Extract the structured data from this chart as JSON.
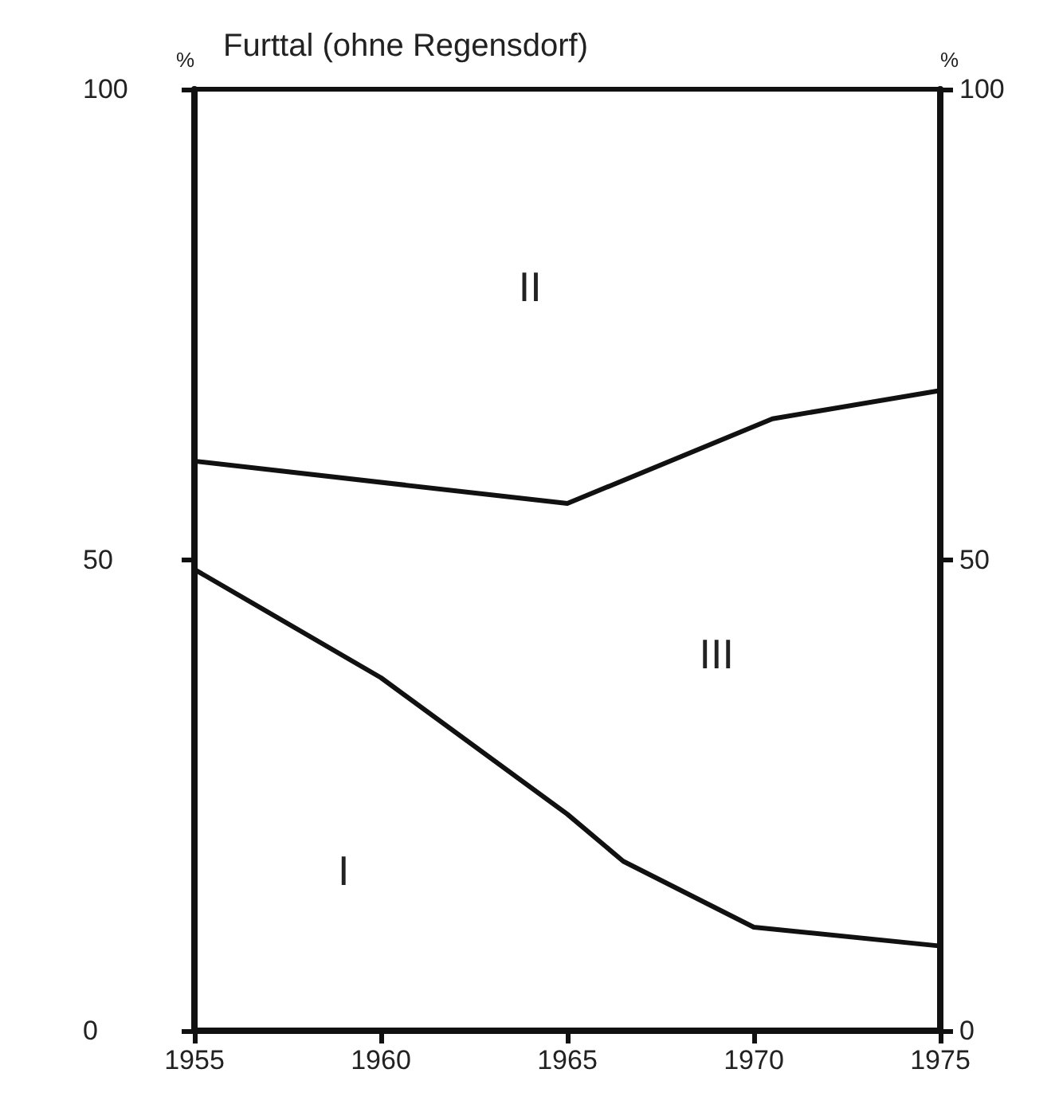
{
  "chart_data": {
    "type": "line",
    "title": "Furttal (ohne Regensdorf)",
    "ylabel": "%",
    "y2label": "%",
    "series": [
      {
        "color": "#111111",
        "x": [
          1955,
          1960,
          1965,
          1966.5,
          1970,
          1975
        ],
        "values": [
          49,
          37.5,
          23,
          18,
          11,
          9
        ]
      },
      {
        "color": "#111111",
        "x": [
          1955,
          1965,
          1970.5,
          1975
        ],
        "values": [
          60.5,
          56,
          65,
          68
        ]
      }
    ],
    "annotations": [
      "I",
      "II",
      "III"
    ],
    "xlim": [
      1955,
      1975
    ],
    "xticks": [
      1955,
      1960,
      1965,
      1970,
      1975
    ],
    "ylim": [
      0,
      100
    ],
    "yticks": [
      0,
      50,
      100
    ],
    "y2lim": [
      0,
      100
    ],
    "y2ticks": [
      0,
      50,
      100
    ],
    "grid": false,
    "marker": "none",
    "line_style": "solid"
  }
}
